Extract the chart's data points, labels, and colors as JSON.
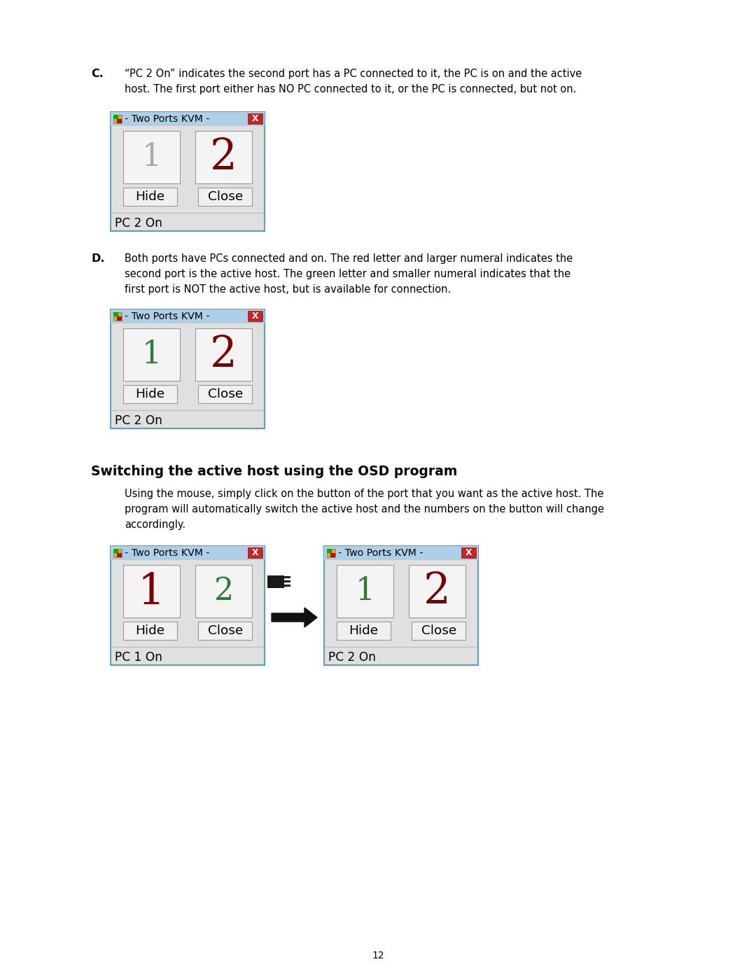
{
  "background_color": "#ffffff",
  "page_number": "12",
  "section_c": {
    "label": "C.",
    "text_line1": "“PC 2 On” indicates the second port has a PC connected to it, the PC is on and the active",
    "text_line2": "host. The first port either has NO PC connected to it, or the PC is connected, but not on.",
    "dialog": {
      "title": "- Two Ports KVM -",
      "btn1_label": "1",
      "btn1_color": "#aaaaaa",
      "btn1_size": 32,
      "btn2_label": "2",
      "btn2_color": "#7a0000",
      "btn2_size": 44,
      "hide_label": "Hide",
      "close_label": "Close",
      "status": "PC 2 On"
    }
  },
  "section_d": {
    "label": "D.",
    "text_line1": "Both ports have PCs connected and on. The red letter and larger numeral indicates the",
    "text_line2": "second port is the active host. The green letter and smaller numeral indicates that the",
    "text_line3": "first port is NOT the active host, but is available for connection.",
    "dialog": {
      "title": "- Two Ports KVM -",
      "btn1_label": "1",
      "btn1_color": "#2e7d32",
      "btn1_size": 32,
      "btn2_label": "2",
      "btn2_color": "#7a0000",
      "btn2_size": 44,
      "hide_label": "Hide",
      "close_label": "Close",
      "status": "PC 2 On"
    }
  },
  "section_osd": {
    "heading": "Switching the active host using the OSD program",
    "text_line1": "Using the mouse, simply click on the button of the port that you want as the active host. The",
    "text_line2": "program will automatically switch the active host and the numbers on the button will change",
    "text_line3": "accordingly.",
    "dialog_left": {
      "title": "- Two Ports KVM -",
      "btn1_label": "1",
      "btn1_color": "#7a0000",
      "btn1_size": 44,
      "btn2_label": "2",
      "btn2_color": "#2e7d32",
      "btn2_size": 32,
      "hide_label": "Hide",
      "close_label": "Close",
      "status": "PC 1 On"
    },
    "dialog_right": {
      "title": "- Two Ports KVM -",
      "btn1_label": "1",
      "btn1_color": "#2e7d32",
      "btn1_size": 32,
      "btn2_label": "2",
      "btn2_color": "#7a0000",
      "btn2_size": 44,
      "hide_label": "Hide",
      "close_label": "Close",
      "status": "PC 2 On"
    }
  }
}
